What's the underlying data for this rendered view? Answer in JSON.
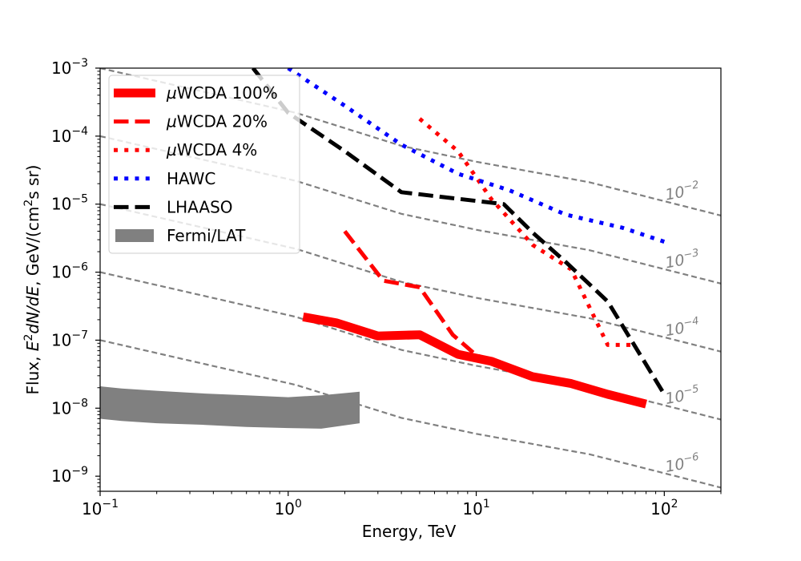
{
  "chart_data": {
    "type": "line",
    "title": "",
    "xlabel": "Energy, TeV",
    "ylabel_parts": [
      "Flux, ",
      "E",
      "2",
      "dN",
      "/",
      "dE",
      ", GeV/(cm",
      "2",
      "s sr)"
    ],
    "xscale": "log",
    "yscale": "log",
    "xlim": [
      0.1,
      200
    ],
    "ylim": [
      6e-10,
      0.001
    ],
    "xticks": [
      {
        "value": 0.1,
        "base": "10",
        "exp": "−1"
      },
      {
        "value": 1,
        "base": "10",
        "exp": "0"
      },
      {
        "value": 10,
        "base": "10",
        "exp": "1"
      },
      {
        "value": 100,
        "base": "10",
        "exp": "2"
      }
    ],
    "yticks": [
      {
        "value": 1e-09,
        "base": "10",
        "exp": "−9"
      },
      {
        "value": 1e-08,
        "base": "10",
        "exp": "−8"
      },
      {
        "value": 1e-07,
        "base": "10",
        "exp": "−7"
      },
      {
        "value": 1e-06,
        "base": "10",
        "exp": "−6"
      },
      {
        "value": 1e-05,
        "base": "10",
        "exp": "−5"
      },
      {
        "value": 0.0001,
        "base": "10",
        "exp": "−4"
      },
      {
        "value": 0.001,
        "base": "10",
        "exp": "−3"
      }
    ],
    "reference_lines": [
      {
        "label_base": "10",
        "label_exp": "−2",
        "x": [
          0.1,
          1.1,
          4,
          10,
          40,
          200
        ],
        "y": [
          0.001,
          0.00022,
          7.2e-05,
          4.2e-05,
          2.1e-05,
          6.8e-06
        ]
      },
      {
        "label_base": "10",
        "label_exp": "−3",
        "x": [
          0.1,
          1.1,
          4,
          10,
          40,
          200
        ],
        "y": [
          0.0001,
          2.2e-05,
          7.2e-06,
          4.2e-06,
          2.1e-06,
          6.8e-07
        ]
      },
      {
        "label_base": "10",
        "label_exp": "−4",
        "x": [
          0.1,
          1.1,
          4,
          10,
          40,
          200
        ],
        "y": [
          1e-05,
          2.2e-06,
          7.2e-07,
          4.2e-07,
          2.1e-07,
          6.8e-08
        ]
      },
      {
        "label_base": "10",
        "label_exp": "−5",
        "x": [
          0.1,
          1.1,
          4,
          10,
          40,
          200
        ],
        "y": [
          1e-06,
          2.2e-07,
          7.2e-08,
          4.2e-08,
          2.1e-08,
          6.8e-09
        ]
      },
      {
        "label_base": "10",
        "label_exp": "−6",
        "x": [
          0.1,
          1.1,
          4,
          10,
          40,
          200
        ],
        "y": [
          1e-07,
          2.2e-08,
          7.2e-09,
          4.2e-09,
          2.1e-09,
          6.8e-10
        ]
      }
    ],
    "series": [
      {
        "name": "µWCDA 100%",
        "color": "#ff0000",
        "style": "solid",
        "width": 11,
        "x": [
          1.2,
          1.8,
          3.0,
          5.0,
          8.0,
          12.0,
          20.0,
          32.0,
          50.0,
          80.0
        ],
        "y": [
          2.2e-07,
          1.8e-07,
          1.15e-07,
          1.2e-07,
          6.2e-08,
          4.9e-08,
          2.9e-08,
          2.3e-08,
          1.6e-08,
          1.15e-08
        ]
      },
      {
        "name": "µWCDA 20%",
        "color": "#ff0000",
        "style": "dashed",
        "width": 5,
        "x": [
          2.0,
          3.2,
          5.0,
          7.5,
          10.0,
          12.0
        ],
        "y": [
          4e-06,
          7.5e-07,
          6e-07,
          1.2e-07,
          6e-08,
          5e-08
        ]
      },
      {
        "name": "µWCDA 4%",
        "color": "#ff0000",
        "style": "dotted",
        "width": 5,
        "x": [
          5.0,
          8.0,
          12.0,
          20.0,
          32.0,
          50.0,
          70.0
        ],
        "y": [
          0.00018,
          6e-05,
          1.2e-05,
          2.5e-06,
          1.1e-06,
          8.5e-08,
          8.5e-08
        ]
      },
      {
        "name": "HAWC",
        "color": "#0000ff",
        "style": "dotted",
        "width": 5,
        "x": [
          1.0,
          2.0,
          4.0,
          8.0,
          15.0,
          30.0,
          60.0,
          100.0
        ],
        "y": [
          0.001,
          0.00028,
          7.5e-05,
          2.8e-05,
          1.6e-05,
          7e-06,
          4.5e-06,
          2.8e-06
        ]
      },
      {
        "name": "LHAASO",
        "color": "#000000",
        "style": "dashed",
        "width": 5,
        "x": [
          0.65,
          1.0,
          2.0,
          4.0,
          14.0,
          20.0,
          30.0,
          50.0,
          100.0
        ],
        "y": [
          0.001,
          0.00022,
          6e-05,
          1.5e-05,
          1e-05,
          3.8e-06,
          1.4e-06,
          3.7e-07,
          1.6e-08
        ]
      }
    ],
    "bands": [
      {
        "name": "Fermi/LAT",
        "color": "#808080",
        "x": [
          0.1,
          0.13,
          0.2,
          0.35,
          0.6,
          1.0,
          1.5,
          2.4
        ],
        "upper": [
          2.1e-08,
          1.95e-08,
          1.8e-08,
          1.65e-08,
          1.55e-08,
          1.45e-08,
          1.55e-08,
          1.75e-08
        ],
        "lower": [
          7e-09,
          6.5e-09,
          6e-09,
          5.7e-09,
          5.3e-09,
          5.1e-09,
          5e-09,
          6e-09
        ]
      }
    ],
    "legend": {
      "position": "top-left",
      "entries": [
        "µWCDA 100%",
        "µWCDA 20%",
        "µWCDA 4%",
        "HAWC",
        "LHAASO",
        "Fermi/LAT"
      ]
    },
    "grid": false
  }
}
